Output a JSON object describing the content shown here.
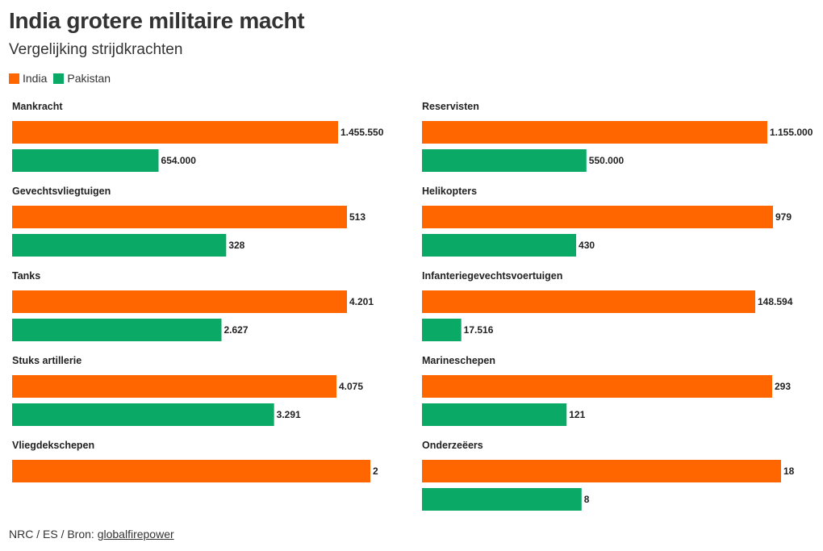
{
  "header": {
    "title": "India grotere militaire macht",
    "subtitle": "Vergelijking strijdkrachten"
  },
  "legend": [
    {
      "name": "India",
      "color": "#ff6600"
    },
    {
      "name": "Pakistan",
      "color": "#0aaa66"
    }
  ],
  "footer": {
    "prefix": "NRC / ES / Bron: ",
    "link": "globalfirepower"
  },
  "chart_data": {
    "type": "bar",
    "orientation": "horizontal",
    "layout": "small-multiples",
    "series_names": [
      "India",
      "Pakistan"
    ],
    "colors": {
      "India": "#ff6600",
      "Pakistan": "#0aaa66"
    },
    "panels": [
      {
        "category": "Mankracht",
        "values": [
          1455550,
          654000
        ],
        "labels": [
          "1.455.550",
          "654.000"
        ],
        "max": 1455550
      },
      {
        "category": "Reservisten",
        "values": [
          1155000,
          550000
        ],
        "labels": [
          "1.155.000",
          "550.000"
        ],
        "max": 1155000
      },
      {
        "category": "Gevechtsvliegtuigen",
        "values": [
          513,
          328
        ],
        "labels": [
          "513",
          "328"
        ],
        "max": 513
      },
      {
        "category": "Helikopters",
        "values": [
          979,
          430
        ],
        "labels": [
          "979",
          "430"
        ],
        "max": 979
      },
      {
        "category": "Tanks",
        "values": [
          4201,
          2627
        ],
        "labels": [
          "4.201",
          "2.627"
        ],
        "max": 4201
      },
      {
        "category": "Infanteriegevechtsvoertuigen",
        "values": [
          148594,
          17516
        ],
        "labels": [
          "148.594",
          "17.516"
        ],
        "max": 148594
      },
      {
        "category": "Stuks artillerie",
        "values": [
          4075,
          3291
        ],
        "labels": [
          "4.075",
          "3.291"
        ],
        "max": 4075
      },
      {
        "category": "Marineschepen",
        "values": [
          293,
          121
        ],
        "labels": [
          "293",
          "121"
        ],
        "max": 293
      },
      {
        "category": "Vliegdekschepen",
        "values": [
          2,
          null
        ],
        "labels": [
          "2",
          ""
        ],
        "max": 2
      },
      {
        "category": "Onderzeëers",
        "values": [
          18,
          8
        ],
        "labels": [
          "18",
          "8"
        ],
        "max": 18
      }
    ]
  }
}
